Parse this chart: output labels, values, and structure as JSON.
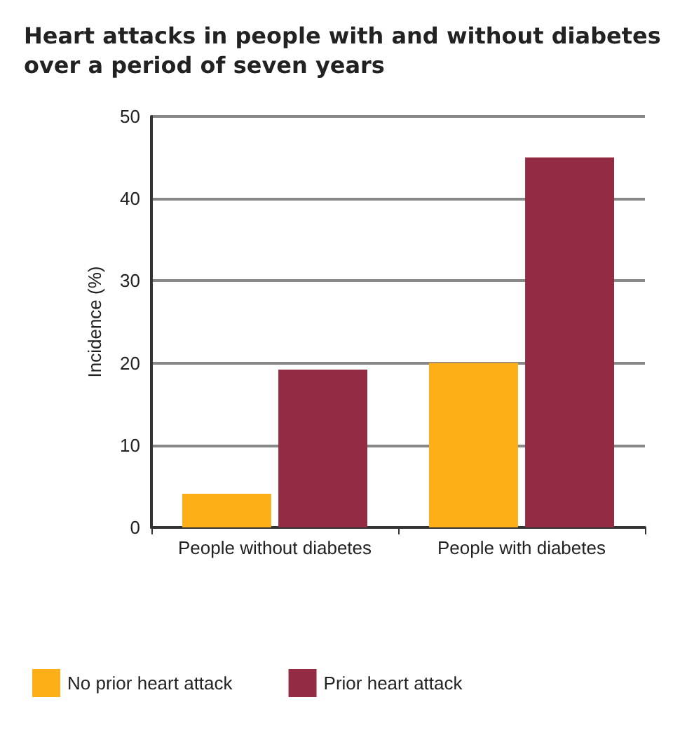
{
  "chart_data": {
    "type": "bar",
    "title": "Heart attacks in people with and without diabetes over a period of seven years",
    "ylabel": "Incidence (%)",
    "categories": [
      "People without diabetes",
      "People with diabetes"
    ],
    "series": [
      {
        "name": "No prior heart attack",
        "color": "#fcaf17",
        "values": [
          4.1,
          20
        ]
      },
      {
        "name": "Prior heart attack",
        "color": "#932c42",
        "values": [
          19.2,
          45
        ]
      }
    ],
    "ylim": [
      0,
      50
    ],
    "yticks": [
      0,
      10,
      20,
      30,
      40,
      50
    ],
    "grid": "y",
    "legend": "bottom"
  }
}
